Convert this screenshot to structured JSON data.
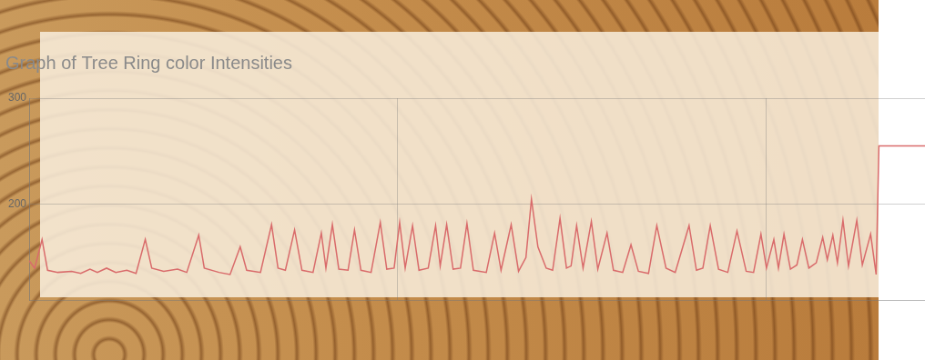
{
  "chart_data": {
    "type": "line",
    "title": "Graph of Tree Ring color Intensities",
    "x": [
      0,
      6,
      14,
      20,
      31,
      46,
      56,
      66,
      74,
      84,
      94,
      106,
      116,
      126,
      133,
      146,
      161,
      171,
      184,
      190,
      206,
      218,
      229,
      236,
      251,
      263,
      270,
      278,
      288,
      296,
      308,
      317,
      322,
      329,
      336,
      346,
      353,
      360,
      371,
      381,
      388,
      396,
      402,
      408,
      416,
      423,
      433,
      441,
      446,
      453,
      460,
      468,
      475,
      482,
      496,
      505,
      512,
      523,
      531,
      539,
      545,
      552,
      561,
      568,
      576,
      583,
      588,
      594,
      601,
      610,
      617,
      627,
      634,
      644,
      653,
      661,
      672,
      681,
      691,
      701,
      716,
      724,
      731,
      739,
      748,
      758,
      768,
      778,
      786,
      794,
      800,
      808,
      813,
      819,
      826,
      833,
      839,
      846,
      854,
      861,
      866,
      872,
      877,
      883,
      889,
      898,
      904,
      913,
      919,
      922,
      972
    ],
    "values": [
      147,
      140,
      167,
      138,
      136,
      137,
      135,
      139,
      136,
      140,
      136,
      138,
      135,
      167,
      140,
      137,
      139,
      136,
      171,
      140,
      136,
      134,
      160,
      138,
      136,
      181,
      140,
      138,
      176,
      138,
      136,
      173,
      140,
      181,
      139,
      138,
      176,
      138,
      136,
      183,
      139,
      140,
      183,
      140,
      180,
      138,
      140,
      180,
      142,
      181,
      139,
      140,
      182,
      138,
      136,
      173,
      138,
      181,
      137,
      150,
      205,
      160,
      140,
      138,
      187,
      140,
      142,
      180,
      140,
      184,
      139,
      173,
      138,
      136,
      162,
      137,
      135,
      180,
      140,
      136,
      180,
      138,
      140,
      180,
      139,
      136,
      175,
      137,
      136,
      172,
      140,
      167,
      140,
      172,
      139,
      143,
      167,
      140,
      145,
      169,
      148,
      171,
      145,
      185,
      142,
      185,
      143,
      172,
      134,
      255,
      255
    ],
    "color": "#d96b6b",
    "xlim": [
      0,
      972
    ],
    "xticks": [
      0,
      400,
      800
    ],
    "ylim": [
      110,
      300
    ],
    "yticks": [
      200,
      300
    ],
    "grid": true,
    "tick_labels": "y"
  }
}
